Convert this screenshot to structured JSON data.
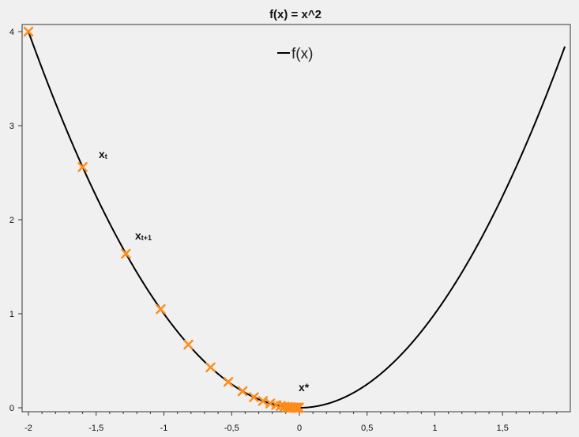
{
  "chart_data": {
    "type": "line",
    "title": "f(x) = x^2",
    "xlabel": "",
    "ylabel": "",
    "xlim": [
      -2,
      2
    ],
    "ylim": [
      0,
      4
    ],
    "x_ticks": [
      -2,
      -1.5,
      -1,
      -0.5,
      0,
      0.5,
      1,
      1.5
    ],
    "x_tick_labels": [
      "-2",
      "-1,5",
      "-1",
      "-0,5",
      "0",
      "0,5",
      "1",
      "1,5"
    ],
    "y_ticks": [
      0,
      1,
      2,
      3,
      4
    ],
    "y_tick_labels": [
      "0",
      "1",
      "2",
      "3",
      "4"
    ],
    "grid": false,
    "legend": {
      "position": "top-center",
      "entries": [
        "f(x)"
      ]
    },
    "series": [
      {
        "name": "f(x)",
        "type": "line",
        "color": "#000000",
        "function": "x^2",
        "x_range": [
          -2,
          1.96
        ]
      },
      {
        "type": "scatter",
        "marker": "x",
        "color": "#ff8c1a",
        "x": [
          -2.0,
          -1.6,
          -1.28,
          -1.024,
          -0.8192,
          -0.6554,
          -0.5243,
          -0.4194,
          -0.3355,
          -0.2684,
          -0.2147,
          -0.1718,
          -0.1374,
          -0.11,
          -0.088,
          -0.0704,
          -0.0563,
          -0.045,
          -0.036,
          -0.0288,
          -0.0231,
          -0.0184,
          -0.0148,
          -0.0118,
          -0.0094,
          -0.0076,
          -0.006,
          -0.0048,
          -0.0039,
          -0.0031
        ],
        "y": [
          4.0,
          2.56,
          1.6384,
          1.0486,
          0.6711,
          0.4295,
          0.2749,
          0.1759,
          0.1126,
          0.0721,
          0.0461,
          0.0295,
          0.0189,
          0.0121,
          0.0077,
          0.005,
          0.0032,
          0.002,
          0.0013,
          0.0008,
          0.0005,
          0.0003,
          0.0002,
          0.0001,
          0.0001,
          0.0001,
          0.0,
          0.0,
          0.0,
          0.0
        ]
      }
    ],
    "annotations": [
      {
        "text": "x",
        "sub": "t"
      },
      {
        "text": "x",
        "sub": "t+1"
      },
      {
        "text": "x*",
        "sub": ""
      }
    ]
  }
}
